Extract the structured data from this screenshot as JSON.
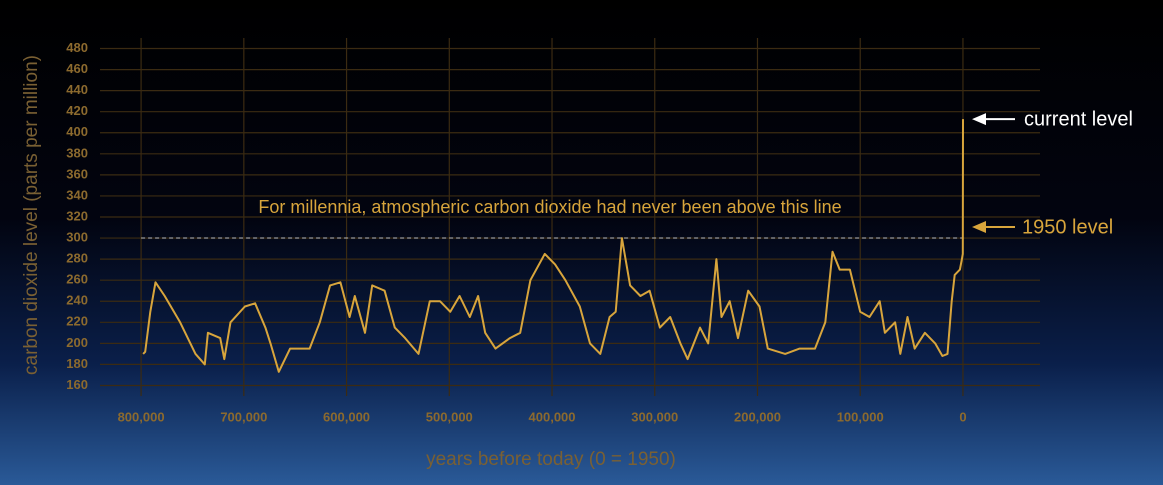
{
  "chart_data": {
    "type": "line",
    "xlabel": "years before today (0 = 1950)",
    "ylabel": "carbon dioxide level (parts per million)",
    "annotation": "For millennia, atmospheric carbon dioxide had never been above this line",
    "reference_line": {
      "value": 300,
      "label": "1950 level"
    },
    "current_label": "current level",
    "xlim": [
      840000,
      -75000
    ],
    "ylim": [
      150,
      490
    ],
    "xticks": [
      {
        "value": 800000,
        "label": "800,000"
      },
      {
        "value": 700000,
        "label": "700,000"
      },
      {
        "value": 600000,
        "label": "600,000"
      },
      {
        "value": 500000,
        "label": "500,000"
      },
      {
        "value": 400000,
        "label": "400,000"
      },
      {
        "value": 300000,
        "label": "300,000"
      },
      {
        "value": 200000,
        "label": "200,000"
      },
      {
        "value": 100000,
        "label": "100,000"
      },
      0
    ],
    "yticks": [
      160,
      180,
      200,
      220,
      240,
      260,
      280,
      300,
      320,
      340,
      360,
      380,
      400,
      420,
      440,
      460,
      480
    ],
    "grid": true,
    "color": "#d8a53c",
    "x": [
      798000,
      796000,
      791000,
      786000,
      777000,
      762000,
      747000,
      738000,
      735000,
      723000,
      719000,
      713000,
      699000,
      689000,
      679000,
      674000,
      666000,
      655000,
      636000,
      626000,
      616000,
      606000,
      597000,
      592000,
      582000,
      575000,
      563000,
      553000,
      543000,
      530000,
      519000,
      509000,
      499000,
      490000,
      480000,
      472000,
      465000,
      455000,
      441000,
      431000,
      421000,
      407000,
      397000,
      387000,
      373000,
      363000,
      353000,
      344000,
      338000,
      332000,
      324000,
      314000,
      305000,
      295000,
      285000,
      275000,
      268000,
      256000,
      248000,
      240000,
      235000,
      227000,
      219000,
      209000,
      198000,
      190000,
      173000,
      159000,
      144000,
      134000,
      127000,
      120000,
      110000,
      100000,
      91000,
      81000,
      76000,
      66000,
      61000,
      54000,
      47000,
      37000,
      27000,
      20000,
      15000,
      11000,
      8000,
      3000,
      1000,
      100,
      -70
    ],
    "values": [
      190,
      192,
      230,
      258,
      245,
      220,
      190,
      180,
      210,
      205,
      185,
      220,
      235,
      238,
      215,
      200,
      173,
      195,
      195,
      220,
      255,
      258,
      225,
      245,
      210,
      255,
      250,
      215,
      205,
      190,
      240,
      240,
      230,
      245,
      225,
      245,
      210,
      195,
      205,
      210,
      260,
      285,
      275,
      260,
      235,
      200,
      190,
      225,
      230,
      300,
      255,
      245,
      250,
      215,
      225,
      200,
      185,
      215,
      200,
      280,
      225,
      240,
      205,
      250,
      235,
      195,
      190,
      195,
      195,
      220,
      287,
      270,
      270,
      230,
      225,
      240,
      210,
      220,
      190,
      225,
      195,
      210,
      200,
      188,
      190,
      240,
      265,
      270,
      280,
      285,
      413
    ]
  }
}
